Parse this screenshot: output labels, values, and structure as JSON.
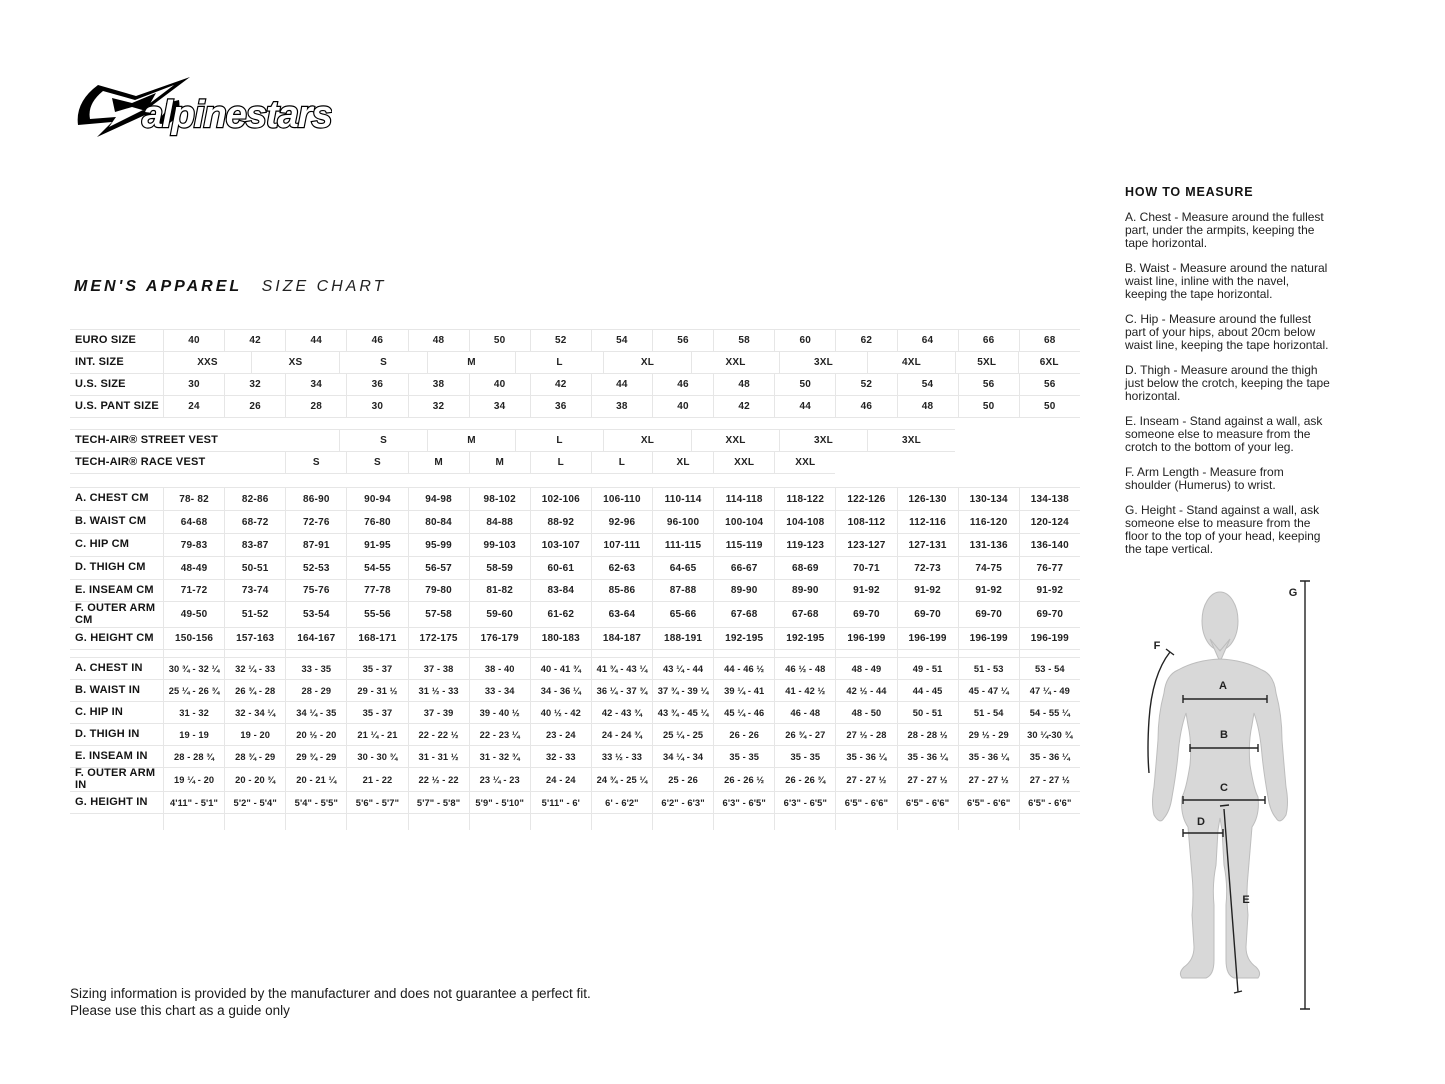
{
  "logo": {
    "text": "alpinestars",
    "icon": "alpinestars-star-icon"
  },
  "title": {
    "primary": "MEN'S APPAREL",
    "secondary": "SIZE CHART"
  },
  "colors": {
    "ink": "#1d1d1b",
    "table_border": "#e6e6e6",
    "figure_fill": "#d8d8d8"
  },
  "size_tables": {
    "euro": {
      "label": "EURO SIZE",
      "values": [
        "40",
        "42",
        "44",
        "46",
        "48",
        "50",
        "52",
        "54",
        "56",
        "58",
        "60",
        "62",
        "64",
        "66",
        "68"
      ]
    },
    "int": {
      "label": "INT. SIZE",
      "values": [
        "XXS",
        "XS",
        "S",
        "M",
        "L",
        "XL",
        "XXL",
        "3XL",
        "4XL",
        "5XL",
        "6XL"
      ]
    },
    "us": {
      "label": "U.S. SIZE",
      "values": [
        "30",
        "32",
        "34",
        "36",
        "38",
        "40",
        "42",
        "44",
        "46",
        "48",
        "50",
        "52",
        "54",
        "56",
        "56"
      ]
    },
    "uspant": {
      "label": "U.S. PANT SIZE",
      "values": [
        "24",
        "26",
        "28",
        "30",
        "32",
        "34",
        "36",
        "38",
        "40",
        "42",
        "44",
        "46",
        "48",
        "50",
        "50"
      ]
    },
    "street": {
      "label": "TECH-AIR® STREET VEST",
      "values": [
        "S",
        "M",
        "L",
        "XL",
        "XXL",
        "3XL",
        "3XL"
      ]
    },
    "race": {
      "label": "TECH-AIR® RACE VEST",
      "values": [
        "S",
        "S",
        "M",
        "M",
        "L",
        "L",
        "XL",
        "XXL",
        "XXL"
      ]
    },
    "cm_rows": [
      {
        "label": "A. CHEST CM",
        "values": [
          "78- 82",
          "82-86",
          "86-90",
          "90-94",
          "94-98",
          "98-102",
          "102-106",
          "106-110",
          "110-114",
          "114-118",
          "118-122",
          "122-126",
          "126-130",
          "130-134",
          "134-138"
        ]
      },
      {
        "label": "B. WAIST CM",
        "values": [
          "64-68",
          "68-72",
          "72-76",
          "76-80",
          "80-84",
          "84-88",
          "88-92",
          "92-96",
          "96-100",
          "100-104",
          "104-108",
          "108-112",
          "112-116",
          "116-120",
          "120-124"
        ]
      },
      {
        "label": "C. HIP CM",
        "values": [
          "79-83",
          "83-87",
          "87-91",
          "91-95",
          "95-99",
          "99-103",
          "103-107",
          "107-111",
          "111-115",
          "115-119",
          "119-123",
          "123-127",
          "127-131",
          "131-136",
          "136-140"
        ]
      },
      {
        "label": "D. THIGH CM",
        "values": [
          "48-49",
          "50-51",
          "52-53",
          "54-55",
          "56-57",
          "58-59",
          "60-61",
          "62-63",
          "64-65",
          "66-67",
          "68-69",
          "70-71",
          "72-73",
          "74-75",
          "76-77"
        ]
      },
      {
        "label": "E. INSEAM CM",
        "values": [
          "71-72",
          "73-74",
          "75-76",
          "77-78",
          "79-80",
          "81-82",
          "83-84",
          "85-86",
          "87-88",
          "89-90",
          "89-90",
          "91-92",
          "91-92",
          "91-92",
          "91-92"
        ]
      },
      {
        "label": "F. OUTER ARM CM",
        "values": [
          "49-50",
          "51-52",
          "53-54",
          "55-56",
          "57-58",
          "59-60",
          "61-62",
          "63-64",
          "65-66",
          "67-68",
          "67-68",
          "69-70",
          "69-70",
          "69-70",
          "69-70"
        ]
      },
      {
        "label": "G. HEIGHT CM",
        "values": [
          "150-156",
          "157-163",
          "164-167",
          "168-171",
          "172-175",
          "176-179",
          "180-183",
          "184-187",
          "188-191",
          "192-195",
          "192-195",
          "196-199",
          "196-199",
          "196-199",
          "196-199"
        ]
      }
    ],
    "in_rows": [
      {
        "label": "A. CHEST IN",
        "values": [
          "30 ¾ - 32 ¼",
          "32 ¼ - 33",
          "33  - 35",
          "35  - 37",
          "37 - 38",
          "38  - 40",
          "40  - 41 ¾",
          "41 ¾ - 43 ¼",
          "43 ¼ - 44",
          "44  - 46 ½",
          "46 ½ - 48",
          "48 - 49",
          "49  - 51",
          "51  - 53",
          "53  - 54"
        ]
      },
      {
        "label": "B. WAIST IN",
        "values": [
          "25 ¼ - 26 ¾",
          "26 ¾ - 28",
          "28  - 29",
          "29  - 31 ½",
          "31 ½ - 33",
          "33  - 34",
          "34  - 36 ¼",
          "36 ¼ - 37 ¾",
          "37 ¾ - 39 ¼",
          "39 ¼ - 41",
          "41 - 42 ½",
          "42 ½ - 44",
          "44  - 45",
          "45  - 47 ¼",
          "47 ¼ - 49"
        ]
      },
      {
        "label": "C. HIP IN",
        "values": [
          "31  - 32",
          "32  - 34 ¼",
          "34 ¼ - 35",
          "35  - 37",
          "37  - 39",
          "39 - 40 ½",
          "40 ½ - 42",
          "42  - 43 ¾",
          "43 ¾ - 45 ¼",
          "45 ¼ - 46",
          "46  - 48",
          "48  - 50",
          "50 - 51",
          "51  - 54",
          "54  - 55 ¼"
        ]
      },
      {
        "label": "D. THIGH IN",
        "values": [
          "19  - 19",
          "19  - 20",
          "20 ½ - 20",
          "21 ¼ - 21",
          "22 - 22 ½",
          "22  - 23 ¼",
          "23  - 24",
          "24  - 24 ¾",
          "25 ¼ - 25",
          "26 - 26",
          "26 ¾ - 27",
          "27 ½ - 28",
          "28  - 28 ½",
          "29 ½ - 29",
          "30 ¼-30 ¾"
        ]
      },
      {
        "label": "E. INSEAM IN",
        "values": [
          "28 - 28 ¾",
          "28 ¾ - 29",
          "29 ¾ - 29",
          "30  - 30 ¾",
          "31  - 31 ½",
          "31  - 32 ¾",
          "32  - 33",
          "33 ½ - 33",
          "34 ¼ - 34",
          "35 - 35",
          "35 - 35",
          "35  - 36 ¼",
          "35  - 36 ¼",
          "35  - 36 ¼",
          "35  - 36 ¼"
        ]
      },
      {
        "label": "F. OUTER ARM IN",
        "values": [
          "19 ¼ - 20",
          "20  - 20 ¾",
          "20  - 21 ¼",
          "21  - 22",
          "22 ½ - 22",
          "23 ¼ - 23",
          "24 - 24",
          "24 ¾ - 25 ¼",
          "25  - 26",
          "26  - 26 ½",
          "26  - 26 ¾",
          "27  - 27 ½",
          "27  - 27 ½",
          "27  - 27 ½",
          "27  - 27 ½"
        ]
      },
      {
        "label": "G. HEIGHT IN",
        "values": [
          "4'11\" - 5'1\"",
          "5'2\" - 5'4\"",
          "5'4\" - 5'5\"",
          "5'6\" - 5'7\"",
          "5'7\" - 5'8\"",
          "5'9\" - 5'10\"",
          "5'11\" - 6'",
          "6' - 6'2\"",
          "6'2\" - 6'3\"",
          "6'3\" - 6'5\"",
          "6'3\" - 6'5\"",
          "6'5\" - 6'6\"",
          "6'5\" - 6'6\"",
          "6'5\" - 6'6\"",
          "6'5\" - 6'6\""
        ]
      }
    ]
  },
  "how_to_measure": {
    "heading": "HOW TO MEASURE",
    "items": [
      "A. Chest - Measure around the fullest part, under the armpits, keeping the tape horizontal.",
      "B. Waist - Measure around the natural waist line, inline with the navel, keeping the tape horizontal.",
      "C. Hip - Measure around the fullest part of your hips, about 20cm below waist line, keeping the tape horizontal.",
      "D. Thigh - Measure around the thigh just below the crotch, keeping the tape horizontal.",
      "E. Inseam - Stand against a wall, ask someone else to measure from the crotch to the bottom of your leg.",
      "F. Arm Length - Measure from shoulder (Humerus) to wrist.",
      "G. Height - Stand against a wall, ask someone else to measure from the floor to the top of your head, keeping the tape vertical."
    ]
  },
  "diagram": {
    "label_a": "A",
    "label_b": "B",
    "label_c": "C",
    "label_d": "D",
    "label_e": "E",
    "label_f": "F",
    "label_g": "G"
  },
  "footer": {
    "line1": "Sizing information is provided by the manufacturer and does not guarantee a perfect fit.",
    "line2": "Please use this chart as a guide only"
  }
}
